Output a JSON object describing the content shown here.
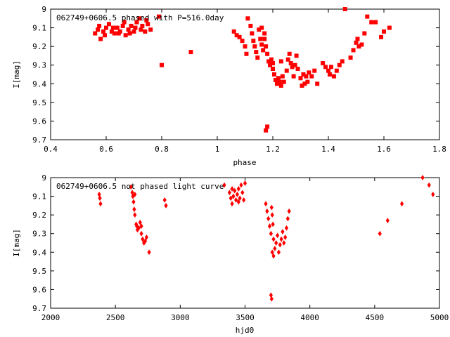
{
  "chart_data": [
    {
      "type": "scatter",
      "title": "062749+0606.5 phased with P=516.0day",
      "xlabel": "phase",
      "ylabel": "I[mag]",
      "xlim": [
        0.4,
        1.8
      ],
      "ylim": [
        9.0,
        9.7
      ],
      "y_inverted": true,
      "grid": false,
      "xticks": [
        "0.4",
        "0.6",
        "0.8",
        "1",
        "1.2",
        "1.4",
        "1.6",
        "1.8"
      ],
      "yticks": [
        "9",
        "9.1",
        "9.2",
        "9.3",
        "9.4",
        "9.5",
        "9.6",
        "9.7"
      ],
      "marker": "filled-square",
      "color": "#ff0000",
      "points": [
        [
          0.56,
          9.13
        ],
        [
          0.57,
          9.11
        ],
        [
          0.575,
          9.09
        ],
        [
          0.58,
          9.16
        ],
        [
          0.59,
          9.12
        ],
        [
          0.6,
          9.1
        ],
        [
          0.61,
          9.08
        ],
        [
          0.62,
          9.12
        ],
        [
          0.63,
          9.13
        ],
        [
          0.64,
          9.1
        ],
        [
          0.65,
          9.12
        ],
        [
          0.66,
          9.09
        ],
        [
          0.67,
          9.14
        ],
        [
          0.68,
          9.11
        ],
        [
          0.69,
          9.09
        ],
        [
          0.7,
          9.12
        ],
        [
          0.71,
          9.07
        ],
        [
          0.72,
          9.05
        ],
        [
          0.73,
          9.09
        ],
        [
          0.74,
          9.12
        ],
        [
          0.75,
          9.08
        ],
        [
          0.76,
          9.11
        ],
        [
          0.595,
          9.14
        ],
        [
          0.625,
          9.1
        ],
        [
          0.645,
          9.13
        ],
        [
          0.665,
          9.07
        ],
        [
          0.685,
          9.13
        ],
        [
          0.705,
          9.1
        ],
        [
          0.725,
          9.11
        ],
        [
          0.745,
          9.06
        ],
        [
          0.79,
          9.04
        ],
        [
          0.8,
          9.3
        ],
        [
          0.905,
          9.23
        ],
        [
          1.06,
          9.12
        ],
        [
          1.07,
          9.14
        ],
        [
          1.08,
          9.15
        ],
        [
          1.09,
          9.17
        ],
        [
          1.1,
          9.2
        ],
        [
          1.105,
          9.24
        ],
        [
          1.11,
          9.05
        ],
        [
          1.12,
          9.09
        ],
        [
          1.125,
          9.13
        ],
        [
          1.13,
          9.17
        ],
        [
          1.135,
          9.2
        ],
        [
          1.14,
          9.23
        ],
        [
          1.145,
          9.26
        ],
        [
          1.15,
          9.11
        ],
        [
          1.155,
          9.16
        ],
        [
          1.16,
          9.19
        ],
        [
          1.165,
          9.22
        ],
        [
          1.17,
          9.16
        ],
        [
          1.175,
          9.2
        ],
        [
          1.18,
          9.24
        ],
        [
          1.185,
          9.28
        ],
        [
          1.19,
          9.3
        ],
        [
          1.195,
          9.27
        ],
        [
          1.2,
          9.32
        ],
        [
          1.205,
          9.35
        ],
        [
          1.21,
          9.38
        ],
        [
          1.215,
          9.4
        ],
        [
          1.22,
          9.37
        ],
        [
          1.225,
          9.39
        ],
        [
          1.23,
          9.41
        ],
        [
          1.235,
          9.36
        ],
        [
          1.24,
          9.39
        ],
        [
          1.25,
          9.33
        ],
        [
          1.255,
          9.27
        ],
        [
          1.26,
          9.24
        ],
        [
          1.265,
          9.29
        ],
        [
          1.27,
          9.31
        ],
        [
          1.275,
          9.36
        ],
        [
          1.28,
          9.3
        ],
        [
          1.285,
          9.25
        ],
        [
          1.29,
          9.32
        ],
        [
          1.3,
          9.37
        ],
        [
          1.305,
          9.41
        ],
        [
          1.31,
          9.35
        ],
        [
          1.315,
          9.4
        ],
        [
          1.32,
          9.36
        ],
        [
          1.325,
          9.39
        ],
        [
          1.33,
          9.34
        ],
        [
          1.34,
          9.36
        ],
        [
          1.35,
          9.33
        ],
        [
          1.36,
          9.4
        ],
        [
          1.38,
          9.29
        ],
        [
          1.39,
          9.31
        ],
        [
          1.4,
          9.33
        ],
        [
          1.405,
          9.35
        ],
        [
          1.41,
          9.31
        ],
        [
          1.42,
          9.36
        ],
        [
          1.43,
          9.33
        ],
        [
          1.44,
          9.3
        ],
        [
          1.45,
          9.28
        ],
        [
          1.46,
          9.0
        ],
        [
          1.48,
          9.26
        ],
        [
          1.49,
          9.22
        ],
        [
          1.5,
          9.18
        ],
        [
          1.505,
          9.16
        ],
        [
          1.51,
          9.2
        ],
        [
          1.52,
          9.19
        ],
        [
          1.53,
          9.13
        ],
        [
          1.54,
          9.04
        ],
        [
          1.555,
          9.07
        ],
        [
          1.57,
          9.07
        ],
        [
          1.59,
          9.15
        ],
        [
          1.6,
          9.12
        ],
        [
          1.62,
          9.1
        ],
        [
          1.175,
          9.65
        ],
        [
          1.18,
          9.63
        ],
        [
          1.16,
          9.1
        ],
        [
          1.17,
          9.13
        ],
        [
          1.2,
          9.29
        ],
        [
          1.23,
          9.28
        ]
      ]
    },
    {
      "type": "scatter",
      "title": "062749+0606.5 not phased light curve",
      "xlabel": "hjd0",
      "ylabel": "I[mag]",
      "xlim": [
        2000,
        5000
      ],
      "ylim": [
        9.0,
        9.7
      ],
      "y_inverted": true,
      "grid": false,
      "xticks": [
        "2000",
        "2500",
        "3000",
        "3500",
        "4000",
        "4500",
        "5000"
      ],
      "yticks": [
        "9",
        "9.1",
        "9.2",
        "9.3",
        "9.4",
        "9.5",
        "9.6",
        "9.7"
      ],
      "marker": "filled-diamond",
      "color": "#ff0000",
      "points": [
        [
          2375,
          9.09
        ],
        [
          2380,
          9.11
        ],
        [
          2385,
          9.14
        ],
        [
          2620,
          9.05
        ],
        [
          2630,
          9.08
        ],
        [
          2635,
          9.1
        ],
        [
          2640,
          9.13
        ],
        [
          2645,
          9.17
        ],
        [
          2650,
          9.2
        ],
        [
          2660,
          9.25
        ],
        [
          2670,
          9.28
        ],
        [
          2680,
          9.27
        ],
        [
          2690,
          9.24
        ],
        [
          2700,
          9.3
        ],
        [
          2710,
          9.33
        ],
        [
          2720,
          9.35
        ],
        [
          2730,
          9.34
        ],
        [
          2740,
          9.32
        ],
        [
          2760,
          9.4
        ],
        [
          2880,
          9.12
        ],
        [
          2890,
          9.15
        ],
        [
          2650,
          9.09
        ],
        [
          2665,
          9.26
        ],
        [
          2700,
          9.26
        ],
        [
          3340,
          9.04
        ],
        [
          3380,
          9.08
        ],
        [
          3390,
          9.11
        ],
        [
          3400,
          9.14
        ],
        [
          3410,
          9.1
        ],
        [
          3420,
          9.07
        ],
        [
          3430,
          9.12
        ],
        [
          3440,
          9.09
        ],
        [
          3450,
          9.06
        ],
        [
          3460,
          9.11
        ],
        [
          3470,
          9.04
        ],
        [
          3480,
          9.08
        ],
        [
          3490,
          9.12
        ],
        [
          3500,
          9.03
        ],
        [
          3400,
          9.06
        ],
        [
          3450,
          9.13
        ],
        [
          3660,
          9.14
        ],
        [
          3670,
          9.18
        ],
        [
          3680,
          9.22
        ],
        [
          3690,
          9.26
        ],
        [
          3700,
          9.3
        ],
        [
          3710,
          9.2
        ],
        [
          3715,
          9.25
        ],
        [
          3720,
          9.33
        ],
        [
          3730,
          9.38
        ],
        [
          3740,
          9.35
        ],
        [
          3750,
          9.31
        ],
        [
          3760,
          9.4
        ],
        [
          3770,
          9.36
        ],
        [
          3780,
          9.33
        ],
        [
          3790,
          9.29
        ],
        [
          3800,
          9.35
        ],
        [
          3810,
          9.32
        ],
        [
          3820,
          9.27
        ],
        [
          3830,
          9.22
        ],
        [
          3840,
          9.18
        ],
        [
          3700,
          9.63
        ],
        [
          3705,
          9.65
        ],
        [
          3705,
          9.16
        ],
        [
          3710,
          9.4
        ],
        [
          3720,
          9.42
        ],
        [
          4540,
          9.3
        ],
        [
          4600,
          9.23
        ],
        [
          4710,
          9.14
        ],
        [
          4870,
          9.0
        ],
        [
          4920,
          9.04
        ],
        [
          4950,
          9.09
        ]
      ]
    }
  ]
}
